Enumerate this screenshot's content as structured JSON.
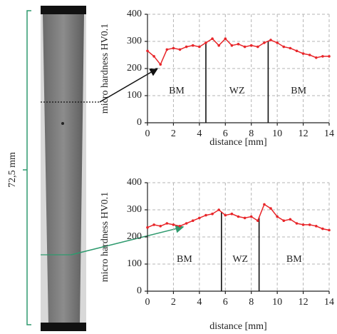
{
  "scale_label": "72,5 mm",
  "chart_data": [
    {
      "type": "line",
      "ylabel": "micro hardness HV0.1",
      "xlabel": "distance [mm]",
      "x": [
        0,
        0.5,
        1,
        1.5,
        2,
        2.5,
        3,
        3.5,
        4,
        4.5,
        5,
        5.5,
        6,
        6.5,
        7,
        7.5,
        8,
        8.5,
        9,
        9.5,
        10,
        10.5,
        11,
        11.5,
        12,
        12.5,
        13,
        13.5,
        14
      ],
      "values": [
        265,
        245,
        215,
        270,
        275,
        270,
        280,
        285,
        280,
        295,
        310,
        285,
        310,
        285,
        290,
        280,
        285,
        280,
        295,
        305,
        295,
        280,
        275,
        265,
        255,
        250,
        240,
        245,
        245
      ],
      "color": "#e8262a",
      "boundaries": [
        4.5,
        9.3
      ],
      "regions": [
        "BM",
        "WZ",
        "BM"
      ],
      "xlim": [
        0,
        14
      ],
      "xticks": [
        0,
        2,
        4,
        6,
        8,
        10,
        12,
        14
      ],
      "ylim": [
        0,
        400
      ],
      "yticks": [
        0,
        100,
        200,
        300,
        400
      ],
      "grid": true
    },
    {
      "type": "line",
      "ylabel": "micro hardness HV0.1",
      "xlabel": "distance [mm]",
      "x": [
        0,
        0.5,
        1,
        1.5,
        2,
        2.5,
        3,
        3.5,
        4,
        4.5,
        5,
        5.5,
        6,
        6.5,
        7,
        7.5,
        8,
        8.5,
        9,
        9.5,
        10,
        10.5,
        11,
        11.5,
        12,
        12.5,
        13,
        13.5,
        14
      ],
      "values": [
        235,
        245,
        240,
        250,
        245,
        240,
        250,
        260,
        270,
        280,
        285,
        300,
        280,
        285,
        275,
        270,
        275,
        260,
        320,
        305,
        275,
        260,
        265,
        250,
        245,
        245,
        240,
        230,
        225
      ],
      "color": "#e8262a",
      "boundaries": [
        5.7,
        8.6
      ],
      "regions": [
        "BM",
        "WZ",
        "BM"
      ],
      "xlim": [
        0,
        14
      ],
      "xticks": [
        0,
        2,
        4,
        6,
        8,
        10,
        12,
        14
      ],
      "ylim": [
        0,
        400
      ],
      "yticks": [
        0,
        100,
        200,
        300,
        400
      ],
      "grid": true
    }
  ]
}
